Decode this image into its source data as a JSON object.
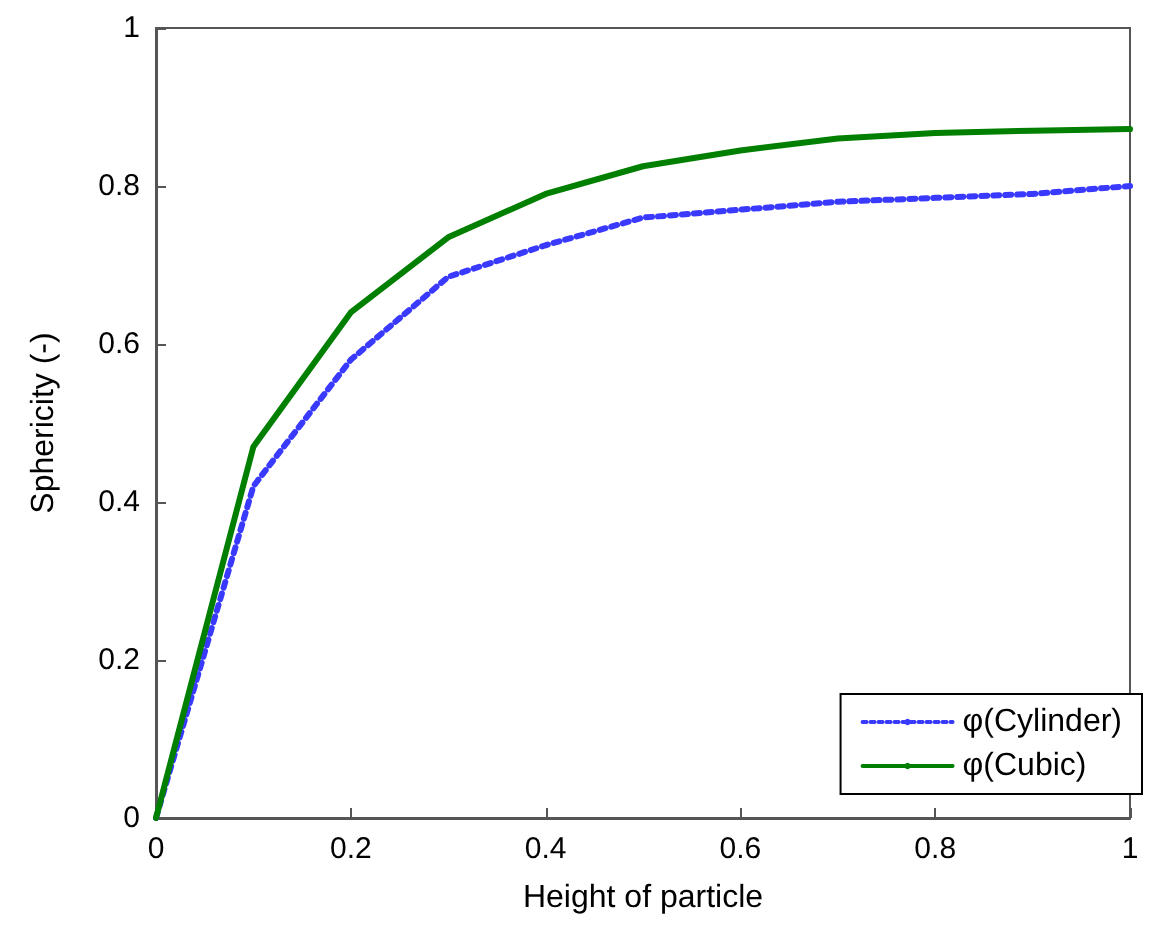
{
  "chart_data": {
    "type": "line",
    "xlabel": "Height of particle",
    "ylabel": "Sphericity (-)",
    "x": [
      0,
      0.1,
      0.2,
      0.3,
      0.4,
      0.5,
      0.6,
      0.7,
      0.8,
      0.9,
      1.0
    ],
    "series": [
      {
        "name": "φ(Cylinder)",
        "color": "#3a3aff",
        "line_style": "dotted",
        "values": [
          0,
          0.42,
          0.58,
          0.685,
          0.725,
          0.76,
          0.77,
          0.78,
          0.785,
          0.79,
          0.8
        ]
      },
      {
        "name": "φ(Cubic)",
        "color": "#007f00",
        "line_style": "solid",
        "values": [
          0,
          0.47,
          0.64,
          0.735,
          0.79,
          0.825,
          0.845,
          0.86,
          0.867,
          0.87,
          0.872
        ]
      }
    ],
    "xlim": [
      0,
      1
    ],
    "xticks": [
      0,
      0.2,
      0.4,
      0.6,
      0.8,
      1
    ],
    "ylim": [
      0,
      1
    ],
    "yticks": [
      0,
      0.2,
      0.4,
      0.6,
      0.8,
      1
    ],
    "grid": false,
    "legend": "bottom right",
    "marker": "none"
  }
}
